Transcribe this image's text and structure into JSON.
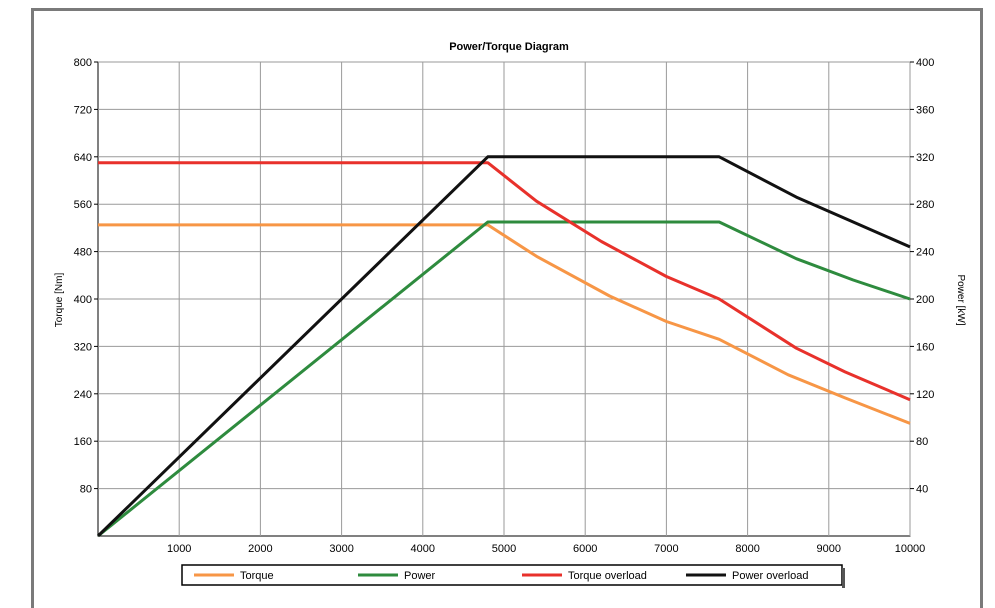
{
  "chart_data": {
    "type": "line",
    "title": "Power/Torque Diagram",
    "xlabel": "",
    "ylabel": "Torque [Nm]",
    "y2label": "Power [kW]",
    "xlim": [
      0,
      10000
    ],
    "ylim": [
      0,
      800
    ],
    "y2lim": [
      0,
      400
    ],
    "x_ticks": [
      1000,
      2000,
      3000,
      4000,
      5000,
      6000,
      7000,
      8000,
      9000,
      10000
    ],
    "y_ticks": [
      80,
      160,
      240,
      320,
      400,
      480,
      560,
      640,
      720,
      800
    ],
    "y2_ticks": [
      40,
      80,
      120,
      160,
      200,
      240,
      280,
      320,
      360,
      400
    ],
    "grid": true,
    "legend_position": "bottom",
    "series": [
      {
        "name": "Torque",
        "axis": "left",
        "color": "#f79646",
        "x": [
          0,
          4800,
          5400,
          6300,
          7000,
          7650,
          8500,
          9200,
          10000
        ],
        "y": [
          525,
          525,
          472,
          405,
          362,
          332,
          272,
          233,
          190
        ]
      },
      {
        "name": "Power",
        "axis": "right",
        "color": "#2e8b3e",
        "x": [
          0,
          4800,
          7650,
          8600,
          9300,
          10000
        ],
        "y": [
          0,
          265,
          265,
          234,
          216,
          200
        ]
      },
      {
        "name": "Torque overload",
        "axis": "left",
        "color": "#e8312b",
        "x": [
          0,
          4800,
          5400,
          6200,
          7000,
          7650,
          8600,
          9200,
          10000
        ],
        "y": [
          630,
          630,
          565,
          497,
          438,
          400,
          317,
          277,
          230
        ]
      },
      {
        "name": "Power overload",
        "axis": "right",
        "color": "#111111",
        "x": [
          0,
          4800,
          7650,
          8600,
          9300,
          10000
        ],
        "y": [
          0,
          320,
          320,
          286,
          265,
          244
        ]
      }
    ]
  }
}
